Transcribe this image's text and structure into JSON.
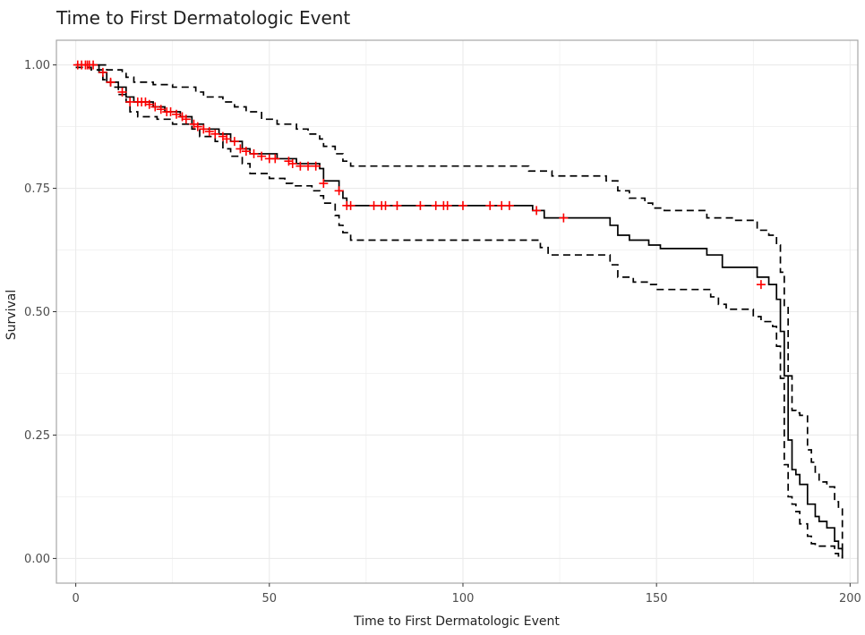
{
  "chart_data": {
    "type": "line",
    "title": "Time to First Dermatologic Event",
    "xlabel": "Time to First Dermatologic Event",
    "ylabel": "Survival",
    "xlim": [
      -5,
      202
    ],
    "ylim": [
      -0.05,
      1.05
    ],
    "x_ticks": [
      0,
      50,
      100,
      150,
      200
    ],
    "y_ticks": [
      0,
      0.25,
      0.5,
      0.75,
      1
    ],
    "y_tick_labels": [
      "0.00",
      "0.25",
      "0.50",
      "0.75",
      "1.00"
    ],
    "grid": true,
    "colors": {
      "survival": "#000000",
      "ci": "#000000",
      "censor": "#ff0000",
      "grid": "#ebebeb",
      "panel_border": "#a6a6a6"
    },
    "series": [
      {
        "role": "estimate",
        "style": "solid",
        "points": [
          [
            0,
            1.0
          ],
          [
            4,
            1.0
          ],
          [
            6,
            0.985
          ],
          [
            8,
            0.965
          ],
          [
            11,
            0.955
          ],
          [
            13,
            0.935
          ],
          [
            15,
            0.925
          ],
          [
            20,
            0.915
          ],
          [
            23,
            0.905
          ],
          [
            27,
            0.895
          ],
          [
            30,
            0.88
          ],
          [
            33,
            0.87
          ],
          [
            37,
            0.86
          ],
          [
            40,
            0.845
          ],
          [
            43,
            0.83
          ],
          [
            45,
            0.82
          ],
          [
            52,
            0.81
          ],
          [
            57,
            0.8
          ],
          [
            63,
            0.79
          ],
          [
            64,
            0.765
          ],
          [
            68,
            0.745
          ],
          [
            69,
            0.73
          ],
          [
            70,
            0.715
          ],
          [
            117,
            0.715
          ],
          [
            118,
            0.705
          ],
          [
            121,
            0.69
          ],
          [
            135,
            0.69
          ],
          [
            138,
            0.675
          ],
          [
            140,
            0.655
          ],
          [
            143,
            0.645
          ],
          [
            148,
            0.635
          ],
          [
            151,
            0.628
          ],
          [
            162,
            0.628
          ],
          [
            163,
            0.615
          ],
          [
            167,
            0.59
          ],
          [
            175,
            0.59
          ],
          [
            176,
            0.57
          ],
          [
            179,
            0.555
          ],
          [
            181,
            0.525
          ],
          [
            182,
            0.46
          ],
          [
            183,
            0.37
          ],
          [
            184,
            0.24
          ],
          [
            185,
            0.18
          ],
          [
            186,
            0.17
          ],
          [
            187,
            0.15
          ],
          [
            189,
            0.11
          ],
          [
            191,
            0.085
          ],
          [
            192,
            0.075
          ],
          [
            194,
            0.062
          ],
          [
            196,
            0.035
          ],
          [
            197,
            0.02
          ],
          [
            198,
            0.0
          ]
        ]
      },
      {
        "role": "upper_ci",
        "style": "dashed",
        "points": [
          [
            0,
            1.0
          ],
          [
            5,
            1.0
          ],
          [
            8,
            0.99
          ],
          [
            12,
            0.985
          ],
          [
            13,
            0.975
          ],
          [
            15,
            0.965
          ],
          [
            20,
            0.96
          ],
          [
            25,
            0.955
          ],
          [
            31,
            0.945
          ],
          [
            33,
            0.935
          ],
          [
            38,
            0.925
          ],
          [
            41,
            0.915
          ],
          [
            44,
            0.905
          ],
          [
            48,
            0.89
          ],
          [
            52,
            0.88
          ],
          [
            57,
            0.87
          ],
          [
            60,
            0.86
          ],
          [
            63,
            0.85
          ],
          [
            64,
            0.835
          ],
          [
            67,
            0.82
          ],
          [
            69,
            0.805
          ],
          [
            71,
            0.795
          ],
          [
            116,
            0.795
          ],
          [
            117,
            0.785
          ],
          [
            123,
            0.775
          ],
          [
            135,
            0.775
          ],
          [
            137,
            0.765
          ],
          [
            140,
            0.745
          ],
          [
            143,
            0.73
          ],
          [
            147,
            0.72
          ],
          [
            149,
            0.71
          ],
          [
            152,
            0.705
          ],
          [
            161,
            0.705
          ],
          [
            163,
            0.69
          ],
          [
            167,
            0.69
          ],
          [
            170,
            0.685
          ],
          [
            176,
            0.665
          ],
          [
            179,
            0.655
          ],
          [
            181,
            0.635
          ],
          [
            182,
            0.58
          ],
          [
            183,
            0.51
          ],
          [
            184,
            0.37
          ],
          [
            185,
            0.3
          ],
          [
            186,
            0.295
          ],
          [
            187,
            0.29
          ],
          [
            189,
            0.22
          ],
          [
            190,
            0.195
          ],
          [
            191,
            0.175
          ],
          [
            192,
            0.155
          ],
          [
            193,
            0.155
          ],
          [
            194,
            0.145
          ],
          [
            196,
            0.115
          ],
          [
            197,
            0.1
          ],
          [
            198,
            0.0
          ]
        ]
      },
      {
        "role": "lower_ci",
        "style": "dashed",
        "points": [
          [
            0,
            0.995
          ],
          [
            4,
            0.99
          ],
          [
            7,
            0.97
          ],
          [
            9,
            0.955
          ],
          [
            11,
            0.94
          ],
          [
            13,
            0.925
          ],
          [
            14,
            0.905
          ],
          [
            16,
            0.895
          ],
          [
            21,
            0.89
          ],
          [
            25,
            0.88
          ],
          [
            30,
            0.87
          ],
          [
            32,
            0.855
          ],
          [
            36,
            0.845
          ],
          [
            38,
            0.83
          ],
          [
            40,
            0.815
          ],
          [
            43,
            0.8
          ],
          [
            45,
            0.78
          ],
          [
            50,
            0.77
          ],
          [
            54,
            0.76
          ],
          [
            56,
            0.755
          ],
          [
            61,
            0.745
          ],
          [
            63,
            0.735
          ],
          [
            64,
            0.72
          ],
          [
            67,
            0.695
          ],
          [
            68,
            0.675
          ],
          [
            69,
            0.66
          ],
          [
            71,
            0.645
          ],
          [
            118,
            0.645
          ],
          [
            120,
            0.63
          ],
          [
            122,
            0.615
          ],
          [
            136,
            0.615
          ],
          [
            138,
            0.595
          ],
          [
            140,
            0.57
          ],
          [
            144,
            0.56
          ],
          [
            148,
            0.555
          ],
          [
            150,
            0.545
          ],
          [
            162,
            0.545
          ],
          [
            164,
            0.53
          ],
          [
            166,
            0.515
          ],
          [
            168,
            0.505
          ],
          [
            174,
            0.505
          ],
          [
            175,
            0.49
          ],
          [
            177,
            0.48
          ],
          [
            180,
            0.47
          ],
          [
            181,
            0.43
          ],
          [
            182,
            0.365
          ],
          [
            183,
            0.19
          ],
          [
            184,
            0.125
          ],
          [
            185,
            0.11
          ],
          [
            186,
            0.095
          ],
          [
            187,
            0.07
          ],
          [
            189,
            0.045
          ],
          [
            190,
            0.03
          ],
          [
            191,
            0.025
          ],
          [
            194,
            0.025
          ],
          [
            196,
            0.01
          ],
          [
            197,
            0.005
          ],
          [
            198,
            0.0
          ]
        ]
      }
    ],
    "censor_points": [
      [
        0.5,
        1.0
      ],
      [
        1.5,
        1.0
      ],
      [
        2.5,
        1.0
      ],
      [
        3,
        1.0
      ],
      [
        3.5,
        1.0
      ],
      [
        4.5,
        1.0
      ],
      [
        7,
        0.985
      ],
      [
        9,
        0.965
      ],
      [
        12,
        0.945
      ],
      [
        14,
        0.925
      ],
      [
        16,
        0.925
      ],
      [
        17,
        0.925
      ],
      [
        18,
        0.925
      ],
      [
        19,
        0.92
      ],
      [
        20.5,
        0.915
      ],
      [
        22,
        0.91
      ],
      [
        23.5,
        0.905
      ],
      [
        24.5,
        0.905
      ],
      [
        26,
        0.9
      ],
      [
        27.5,
        0.895
      ],
      [
        28.5,
        0.89
      ],
      [
        30.5,
        0.88
      ],
      [
        31.5,
        0.875
      ],
      [
        33,
        0.87
      ],
      [
        34.5,
        0.865
      ],
      [
        36,
        0.86
      ],
      [
        38,
        0.855
      ],
      [
        39,
        0.85
      ],
      [
        41,
        0.845
      ],
      [
        42.5,
        0.83
      ],
      [
        44,
        0.825
      ],
      [
        46,
        0.82
      ],
      [
        48,
        0.815
      ],
      [
        50,
        0.81
      ],
      [
        51.5,
        0.81
      ],
      [
        55,
        0.805
      ],
      [
        56,
        0.8
      ],
      [
        58,
        0.795
      ],
      [
        60,
        0.795
      ],
      [
        62,
        0.795
      ],
      [
        64,
        0.76
      ],
      [
        68,
        0.745
      ],
      [
        70,
        0.715
      ],
      [
        71,
        0.715
      ],
      [
        77,
        0.715
      ],
      [
        79,
        0.715
      ],
      [
        80,
        0.715
      ],
      [
        83,
        0.715
      ],
      [
        89,
        0.715
      ],
      [
        93,
        0.715
      ],
      [
        95,
        0.715
      ],
      [
        96,
        0.715
      ],
      [
        100,
        0.715
      ],
      [
        107,
        0.715
      ],
      [
        110,
        0.715
      ],
      [
        112,
        0.715
      ],
      [
        119,
        0.705
      ],
      [
        126,
        0.69
      ],
      [
        177,
        0.555
      ]
    ]
  }
}
